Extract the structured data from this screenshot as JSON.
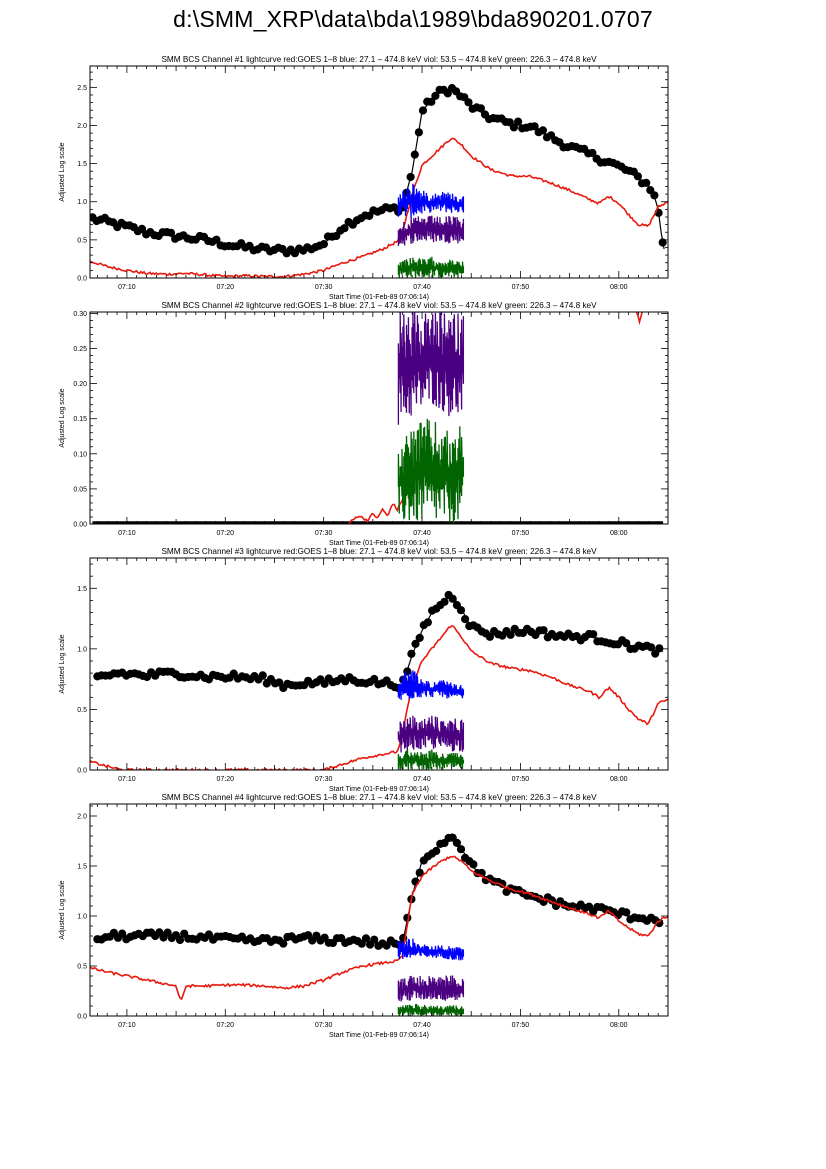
{
  "page": {
    "title": "d:\\SMM_XRP\\data\\bda\\1989\\bda890201.0707"
  },
  "colors": {
    "goes": "#e8190f",
    "blue": "#0000ff",
    "violet": "#4b0082",
    "green": "#006400",
    "bcs": "#000000"
  },
  "chart_data": [
    {
      "type": "scatter",
      "title": "SMM BCS Channel #1 lightcurve  red:GOES 1–8  blue: 27.1 – 474.8 keV  viol: 53.5 – 474.8 keV  green: 226.3 – 474.8 keV",
      "xlabel": "Start Time (01-Feb-89 07:06:14)",
      "ylabel": "Adjusted Log scale",
      "xlim": [
        6.25,
        65.0
      ],
      "ylim": [
        0.0,
        2.78
      ],
      "xticks": [
        10,
        20,
        30,
        40,
        50,
        60
      ],
      "xticklabels": [
        "07:10",
        "07:20",
        "07:30",
        "07:40",
        "07:50",
        "08:00"
      ],
      "yticks": [
        0.0,
        0.5,
        1.0,
        1.5,
        2.0,
        2.5
      ],
      "yticklabels": [
        "0.0",
        "0.5",
        "1.0",
        "1.5",
        "2.0",
        "2.5"
      ],
      "series": [
        {
          "name": "BCS channel #1",
          "color": "black",
          "style": "markers-line",
          "x": [
            6.5,
            9,
            12,
            15,
            18,
            21,
            24,
            26,
            28,
            30,
            32,
            34,
            36,
            38,
            39,
            40,
            41,
            42,
            43,
            44,
            45,
            47,
            49,
            51,
            53,
            55,
            57,
            59,
            61,
            63,
            63.5,
            64,
            64.3,
            64.6
          ],
          "y": [
            0.78,
            0.7,
            0.6,
            0.55,
            0.5,
            0.42,
            0.37,
            0.36,
            0.37,
            0.45,
            0.68,
            0.82,
            0.89,
            0.92,
            1.4,
            2.18,
            2.35,
            2.45,
            2.48,
            2.38,
            2.25,
            2.1,
            2.02,
            1.99,
            1.85,
            1.72,
            1.62,
            1.52,
            1.4,
            1.22,
            1.12,
            0.9,
            0.6,
            0.38
          ]
        },
        {
          "name": "GOES 1–8",
          "color": "red",
          "style": "line",
          "x": [
            6.25,
            8,
            10,
            12,
            14,
            16,
            18,
            20,
            22,
            24,
            26,
            28,
            30,
            32,
            34,
            36,
            37.5,
            38,
            39,
            40,
            41,
            42,
            43,
            44,
            45,
            47,
            49,
            51,
            53,
            55,
            57,
            58,
            59,
            60,
            61,
            62,
            63,
            64,
            65
          ],
          "y": [
            0.22,
            0.15,
            0.1,
            0.06,
            0.05,
            0.06,
            0.04,
            0.02,
            0.03,
            0.02,
            0.02,
            0.05,
            0.1,
            0.2,
            0.28,
            0.38,
            0.48,
            0.6,
            1.1,
            1.48,
            1.6,
            1.72,
            1.84,
            1.75,
            1.6,
            1.42,
            1.34,
            1.33,
            1.25,
            1.15,
            1.03,
            0.98,
            1.07,
            0.98,
            0.83,
            0.7,
            0.68,
            0.93,
            1.0
          ]
        },
        {
          "name": "27.1 – 474.8 keV",
          "color": "blue",
          "style": "band",
          "x": [
            37.6,
            39,
            40,
            41,
            42,
            43,
            44.2
          ],
          "low": [
            0.8,
            0.78,
            0.83,
            0.86,
            0.86,
            0.85,
            0.85
          ],
          "high": [
            1.1,
            1.28,
            1.15,
            1.12,
            1.15,
            1.12,
            1.08
          ]
        },
        {
          "name": "53.5 – 474.8 keV",
          "color": "violet",
          "style": "band",
          "x": [
            37.6,
            39,
            40,
            41,
            42,
            43,
            44.2
          ],
          "low": [
            0.4,
            0.45,
            0.47,
            0.46,
            0.47,
            0.45,
            0.45
          ],
          "high": [
            0.75,
            0.8,
            0.82,
            0.82,
            0.8,
            0.82,
            0.8
          ]
        },
        {
          "name": "226.3 – 474.8 keV",
          "color": "green",
          "style": "band",
          "x": [
            37.6,
            39,
            40,
            41,
            42,
            43,
            44.2
          ],
          "low": [
            0.0,
            0.0,
            0.0,
            0.0,
            0.0,
            0.0,
            0.0
          ],
          "high": [
            0.22,
            0.3,
            0.25,
            0.28,
            0.26,
            0.24,
            0.22
          ]
        }
      ]
    },
    {
      "type": "scatter",
      "title": "SMM BCS Channel #2 lightcurve  red:GOES 1–8  blue: 27.1 – 474.8 keV  viol: 53.5 – 474.8 keV  green: 226.3 – 474.8 keV",
      "xlabel": "Start Time (01-Feb-89 07:06:14)",
      "ylabel": "Adjusted Log scale",
      "xlim": [
        6.25,
        65.0
      ],
      "ylim": [
        0.0,
        0.302
      ],
      "xticks": [
        10,
        20,
        30,
        40,
        50,
        60
      ],
      "xticklabels": [
        "07:10",
        "07:20",
        "07:30",
        "07:40",
        "07:50",
        "08:00"
      ],
      "yticks": [
        0.0,
        0.05,
        0.1,
        0.15,
        0.2,
        0.25,
        0.3
      ],
      "yticklabels": [
        "0.00",
        "0.05",
        "0.10",
        "0.15",
        "0.20",
        "0.25",
        "0.30"
      ],
      "series": [
        {
          "name": "BCS channel #2",
          "color": "black",
          "style": "baseline",
          "x": [
            6.5,
            64.5
          ],
          "y": [
            0.0,
            0.0
          ]
        },
        {
          "name": "GOES 1–8",
          "color": "red",
          "style": "line",
          "x": [
            32.5,
            33.5,
            34.5,
            35,
            35.5,
            36,
            36.5,
            37,
            37.5,
            38,
            38.5,
            39
          ],
          "y": [
            0.0,
            0.012,
            0.005,
            0.015,
            0.008,
            0.022,
            0.01,
            0.03,
            0.02,
            0.035,
            0.05,
            0.06
          ]
        },
        {
          "name": "GOES 1–8 (late)",
          "color": "red",
          "style": "line",
          "x": [
            61.8,
            62.1,
            62.4
          ],
          "y": [
            0.302,
            0.288,
            0.302
          ]
        },
        {
          "name": "27.1 – 474.8 keV",
          "color": "blue",
          "style": "band",
          "x": [
            37.6,
            44.2
          ],
          "low": [
            0.302,
            0.302
          ],
          "high": [
            0.302,
            0.302
          ]
        },
        {
          "name": "53.5 – 474.8 keV",
          "color": "violet",
          "style": "band",
          "x": [
            37.6,
            39,
            40,
            41,
            42,
            43,
            44.2
          ],
          "low": [
            0.14,
            0.15,
            0.16,
            0.17,
            0.16,
            0.15,
            0.15
          ],
          "high": [
            0.302,
            0.302,
            0.302,
            0.302,
            0.302,
            0.302,
            0.302
          ]
        },
        {
          "name": "226.3 – 474.8 keV",
          "color": "green",
          "style": "band",
          "x": [
            37.6,
            39,
            40,
            41,
            42,
            43,
            44.2
          ],
          "low": [
            0.0,
            0.0,
            0.0,
            0.0,
            0.0,
            0.0,
            0.0
          ],
          "high": [
            0.12,
            0.14,
            0.15,
            0.15,
            0.14,
            0.13,
            0.15
          ]
        }
      ]
    },
    {
      "type": "scatter",
      "title": "SMM BCS Channel #3 lightcurve  red:GOES 1–8  blue: 27.1 – 474.8 keV  viol: 53.5 – 474.8 keV  green: 226.3 – 474.8 keV",
      "xlabel": "Start Time (01-Feb-89 07:06:14)",
      "ylabel": "Adjusted Log scale",
      "xlim": [
        6.25,
        65.0
      ],
      "ylim": [
        0.0,
        1.75
      ],
      "xticks": [
        10,
        20,
        30,
        40,
        50,
        60
      ],
      "xticklabels": [
        "07:10",
        "07:20",
        "07:30",
        "07:40",
        "07:50",
        "08:00"
      ],
      "yticks": [
        0.0,
        0.5,
        1.0,
        1.5
      ],
      "yticklabels": [
        "0.0",
        "0.5",
        "1.0",
        "1.5"
      ],
      "series": [
        {
          "name": "BCS channel #3",
          "color": "black",
          "style": "markers-line",
          "x": [
            7,
            9,
            12,
            15,
            18,
            21,
            24,
            26,
            28,
            30,
            32,
            34,
            36,
            38,
            39,
            40,
            41,
            42,
            43,
            44,
            45,
            47,
            49,
            51,
            53,
            55,
            57,
            59,
            61,
            63,
            64.5
          ],
          "y": [
            0.76,
            0.8,
            0.78,
            0.8,
            0.77,
            0.77,
            0.75,
            0.7,
            0.72,
            0.72,
            0.75,
            0.74,
            0.72,
            0.7,
            0.95,
            1.15,
            1.3,
            1.38,
            1.45,
            1.33,
            1.18,
            1.12,
            1.14,
            1.15,
            1.12,
            1.1,
            1.1,
            1.07,
            1.03,
            1.0,
            0.98
          ]
        },
        {
          "name": "GOES 1–8",
          "color": "red",
          "style": "line",
          "x": [
            6.25,
            8,
            9.5,
            30,
            32,
            34,
            36,
            37.5,
            38,
            39,
            40,
            41,
            42,
            43,
            44,
            45,
            47,
            49,
            51,
            53,
            55,
            57,
            58,
            59,
            60,
            61,
            62,
            63,
            64,
            65
          ],
          "y": [
            0.07,
            0.03,
            0.0,
            0.0,
            0.05,
            0.1,
            0.13,
            0.15,
            0.3,
            0.7,
            0.9,
            1.0,
            1.1,
            1.2,
            1.1,
            0.98,
            0.88,
            0.84,
            0.82,
            0.77,
            0.7,
            0.65,
            0.6,
            0.68,
            0.6,
            0.5,
            0.42,
            0.38,
            0.55,
            0.58
          ]
        },
        {
          "name": "27.1 – 474.8 keV",
          "color": "blue",
          "style": "band",
          "x": [
            37.6,
            39,
            40,
            41,
            42,
            43,
            44.2
          ],
          "low": [
            0.55,
            0.58,
            0.6,
            0.6,
            0.6,
            0.58,
            0.58
          ],
          "high": [
            0.78,
            0.85,
            0.75,
            0.73,
            0.75,
            0.72,
            0.7
          ]
        },
        {
          "name": "53.5 – 474.8 keV",
          "color": "violet",
          "style": "band",
          "x": [
            37.6,
            39,
            40,
            41,
            42,
            43,
            44.2
          ],
          "low": [
            0.14,
            0.16,
            0.16,
            0.17,
            0.16,
            0.15,
            0.15
          ],
          "high": [
            0.4,
            0.45,
            0.42,
            0.46,
            0.42,
            0.44,
            0.42
          ]
        },
        {
          "name": "226.3 – 474.8 keV",
          "color": "green",
          "style": "band",
          "x": [
            37.6,
            39,
            40,
            41,
            42,
            43,
            44.2
          ],
          "low": [
            0.0,
            0.0,
            0.0,
            0.0,
            0.0,
            0.0,
            0.0
          ],
          "high": [
            0.15,
            0.18,
            0.15,
            0.17,
            0.14,
            0.15,
            0.14
          ]
        }
      ]
    },
    {
      "type": "scatter",
      "title": "SMM BCS Channel #4 lightcurve  red:GOES 1–8  blue: 27.1 – 474.8 keV  viol: 53.5 – 474.8 keV  green: 226.3 – 474.8 keV",
      "xlabel": "Start Time (01-Feb-89 07:06:14)",
      "ylabel": "Adjusted Log scale",
      "xlim": [
        6.25,
        65.0
      ],
      "ylim": [
        0.0,
        2.12
      ],
      "xticks": [
        10,
        20,
        30,
        40,
        50,
        60
      ],
      "xticklabels": [
        "07:10",
        "07:20",
        "07:30",
        "07:40",
        "07:50",
        "08:00"
      ],
      "yticks": [
        0.0,
        0.5,
        1.0,
        1.5,
        2.0
      ],
      "yticklabels": [
        "0.0",
        "0.5",
        "1.0",
        "1.5",
        "2.0"
      ],
      "series": [
        {
          "name": "BCS channel #4",
          "color": "black",
          "style": "markers-line",
          "x": [
            7,
            9,
            12,
            15,
            18,
            21,
            24,
            26,
            28,
            30,
            32,
            34,
            36,
            38,
            39,
            40,
            41,
            42,
            43,
            44,
            45,
            47,
            49,
            51,
            53,
            55,
            57,
            59,
            61,
            63,
            64.5
          ],
          "y": [
            0.78,
            0.8,
            0.8,
            0.8,
            0.78,
            0.76,
            0.75,
            0.76,
            0.78,
            0.76,
            0.76,
            0.75,
            0.72,
            0.72,
            1.2,
            1.55,
            1.65,
            1.72,
            1.82,
            1.68,
            1.5,
            1.35,
            1.25,
            1.2,
            1.15,
            1.1,
            1.08,
            1.05,
            1.0,
            0.98,
            0.95
          ]
        },
        {
          "name": "GOES 1–8",
          "color": "red",
          "style": "line",
          "x": [
            6.25,
            8,
            10,
            12,
            14,
            15,
            15.5,
            16,
            18,
            20,
            22,
            24,
            26,
            28,
            30,
            32,
            34,
            36,
            37.5,
            38,
            39,
            40,
            41,
            42,
            43,
            44,
            45,
            47,
            49,
            51,
            53,
            55,
            57,
            58,
            59,
            60,
            61,
            62,
            63,
            64,
            65
          ],
          "y": [
            0.48,
            0.44,
            0.4,
            0.36,
            0.32,
            0.3,
            0.14,
            0.3,
            0.3,
            0.31,
            0.31,
            0.3,
            0.28,
            0.3,
            0.36,
            0.44,
            0.5,
            0.53,
            0.55,
            0.6,
            1.22,
            1.4,
            1.48,
            1.55,
            1.6,
            1.55,
            1.45,
            1.35,
            1.27,
            1.22,
            1.15,
            1.08,
            1.02,
            0.98,
            1.05,
            0.95,
            0.88,
            0.82,
            0.8,
            0.95,
            1.0
          ]
        },
        {
          "name": "27.1 – 474.8 keV",
          "color": "blue",
          "style": "band",
          "x": [
            37.6,
            39,
            40,
            41,
            42,
            43,
            44.2
          ],
          "low": [
            0.55,
            0.56,
            0.58,
            0.58,
            0.58,
            0.56,
            0.55
          ],
          "high": [
            0.75,
            0.78,
            0.72,
            0.7,
            0.72,
            0.7,
            0.68
          ]
        },
        {
          "name": "53.5 – 474.8 keV",
          "color": "violet",
          "style": "band",
          "x": [
            37.6,
            39,
            40,
            41,
            42,
            43,
            44.2
          ],
          "low": [
            0.12,
            0.15,
            0.15,
            0.16,
            0.15,
            0.14,
            0.14
          ],
          "high": [
            0.38,
            0.42,
            0.4,
            0.42,
            0.4,
            0.41,
            0.4
          ]
        },
        {
          "name": "226.3 – 474.8 keV",
          "color": "green",
          "style": "band",
          "x": [
            37.6,
            39,
            40,
            41,
            42,
            43,
            44.2
          ],
          "low": [
            0.0,
            0.0,
            0.0,
            0.0,
            0.0,
            0.0,
            0.0
          ],
          "high": [
            0.1,
            0.13,
            0.11,
            0.12,
            0.1,
            0.11,
            0.1
          ]
        }
      ]
    }
  ]
}
